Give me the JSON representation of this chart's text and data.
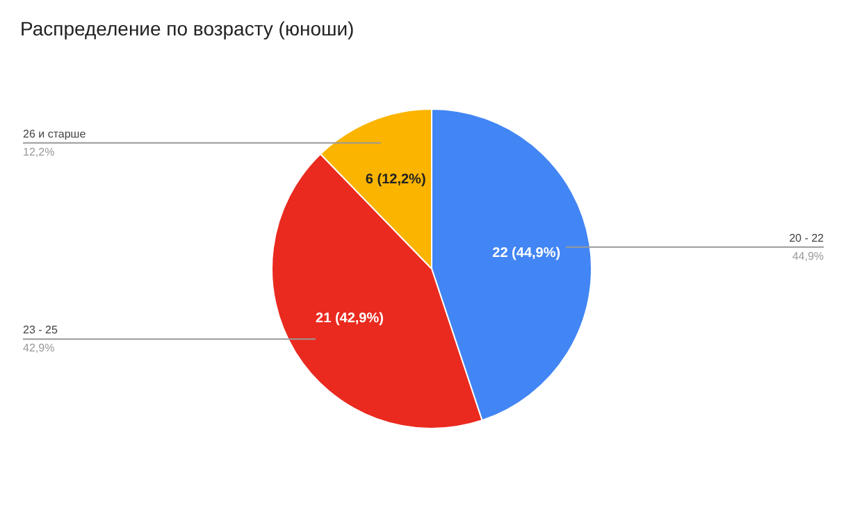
{
  "chart_data": {
    "type": "pie",
    "title": "Распределение по возрасту (юноши)",
    "categories": [
      "20 - 22",
      "23 - 25",
      "26 и старше"
    ],
    "values": [
      22,
      21,
      6
    ],
    "colors": [
      "#4285f4",
      "#ea2a1f",
      "#fbb400"
    ],
    "value_labels": [
      "22 (44,9%)",
      "21 (42,9%)",
      "6 (12,2%)"
    ],
    "annotations": [
      "44,9%",
      "42,9%",
      "12,2%"
    ]
  }
}
